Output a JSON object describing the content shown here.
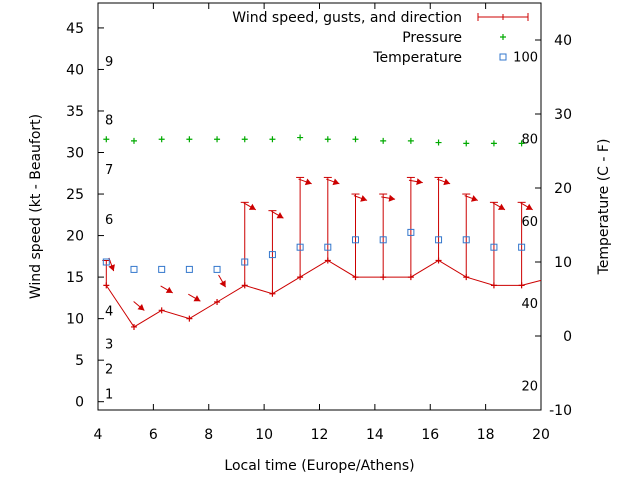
{
  "chart_data": {
    "type": "line",
    "title": "",
    "xlabel": "Local time (Europe/Athens)",
    "ylabel": "Wind speed (kt - Beaufort)",
    "y2label": "Temperature (C - F)",
    "xlim": [
      4,
      20
    ],
    "ylim": [
      -1,
      48
    ],
    "y2lim": [
      -10,
      45
    ],
    "x_ticks": [
      4,
      6,
      8,
      10,
      12,
      14,
      16,
      18,
      20
    ],
    "y_ticks": [
      0,
      5,
      10,
      15,
      20,
      25,
      30,
      35,
      40,
      45
    ],
    "y2_ticks": [
      -10,
      0,
      10,
      20,
      30,
      40
    ],
    "grid": false,
    "legend_position": "top-right",
    "beaufort_labels": [
      {
        "label": "1",
        "value": 1
      },
      {
        "label": "2",
        "value": 4
      },
      {
        "label": "3",
        "value": 7
      },
      {
        "label": "4",
        "value": 11
      },
      {
        "label": "6",
        "value": 22
      },
      {
        "label": "7",
        "value": 28
      },
      {
        "label": "8",
        "value": 34
      },
      {
        "label": "9",
        "value": 41
      }
    ],
    "fahrenheit_labels": [
      {
        "label": "20",
        "value": 20
      },
      {
        "label": "40",
        "value": 40
      },
      {
        "label": "60",
        "value": 60
      },
      {
        "label": "80",
        "value": 80
      },
      {
        "label": "100",
        "value": 100
      }
    ],
    "x": [
      4.3,
      5.3,
      6.3,
      7.3,
      8.3,
      9.3,
      10.3,
      11.3,
      12.3,
      13.3,
      14.3,
      15.3,
      16.3,
      17.3,
      18.3,
      19.3
    ],
    "series": [
      {
        "name": "Wind speed, gusts, and direction",
        "color": "#cc0000",
        "values": [
          14,
          9,
          11,
          10,
          12,
          14,
          13,
          15,
          17,
          15,
          15,
          15,
          17,
          15,
          14,
          14
        ],
        "gusts": [
          17,
          null,
          null,
          null,
          null,
          24,
          23,
          27,
          27,
          25,
          25,
          27,
          27,
          25,
          24,
          24
        ],
        "direction_deg": [
          340,
          310,
          300,
          300,
          330,
          300,
          300,
          290,
          290,
          290,
          280,
          280,
          290,
          290,
          300,
          300
        ],
        "extend_right": 14.6
      },
      {
        "name": "Pressure",
        "color": "#00aa00",
        "values": [
          31.6,
          31.4,
          31.6,
          31.6,
          31.6,
          31.6,
          31.6,
          31.8,
          31.6,
          31.6,
          31.4,
          31.4,
          31.2,
          31.1,
          31.1,
          31.1
        ]
      },
      {
        "name": "Temperature",
        "color": "#3377cc",
        "values": [
          10,
          9,
          9,
          9,
          9,
          10,
          11,
          12,
          12,
          13,
          13,
          14,
          13,
          13,
          12,
          12
        ]
      }
    ]
  }
}
